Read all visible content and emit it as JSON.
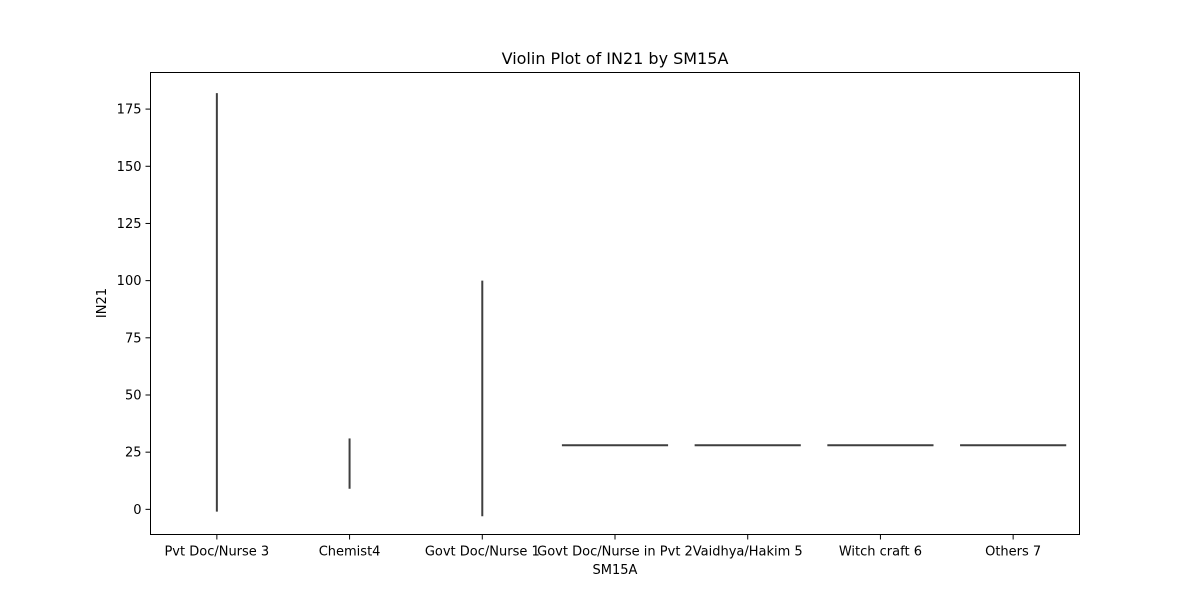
{
  "chart_data": {
    "type": "violin",
    "title": "Violin Plot of IN21 by SM15A",
    "xlabel": "SM15A",
    "ylabel": "IN21",
    "categories": [
      "Pvt Doc/Nurse 3",
      "Chemist4",
      "Govt Doc/Nurse 1",
      "Govt Doc/Nurse in Pvt 2",
      "Vaidhya/Hakim 5",
      "Witch craft 6",
      "Others 7"
    ],
    "violins": [
      {
        "category": "Pvt Doc/Nurse 3",
        "min": -1,
        "max": 182,
        "value": null
      },
      {
        "category": "Chemist4",
        "min": 9,
        "max": 31,
        "value": null
      },
      {
        "category": "Govt Doc/Nurse 1",
        "min": -3,
        "max": 100,
        "value": null
      },
      {
        "category": "Govt Doc/Nurse in Pvt 2",
        "min": 28,
        "max": 28,
        "value": 28
      },
      {
        "category": "Vaidhya/Hakim 5",
        "min": 28,
        "max": 28,
        "value": 28
      },
      {
        "category": "Witch craft 6",
        "min": 28,
        "max": 28,
        "value": 28
      },
      {
        "category": "Others 7",
        "min": 28,
        "max": 28,
        "value": 28
      }
    ],
    "yticks": [
      0,
      25,
      50,
      75,
      100,
      125,
      150,
      175
    ],
    "ylim": [
      -11,
      191
    ],
    "grid": false,
    "legend": "none",
    "line_color": "#3f3f3f"
  }
}
